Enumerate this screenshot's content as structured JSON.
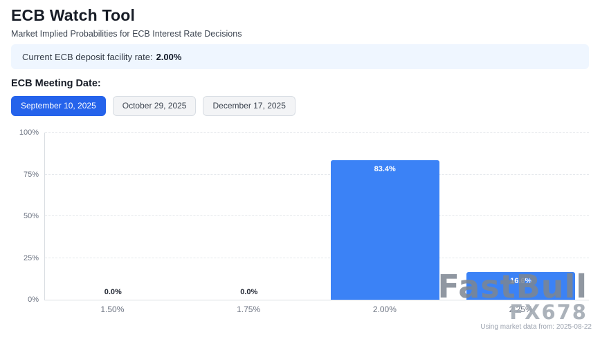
{
  "page": {
    "title": "ECB Watch Tool",
    "subtitle": "Market Implied Probabilities for ECB Interest Rate Decisions",
    "rate_banner": {
      "label": "Current ECB deposit facility rate:",
      "value": "2.00%"
    },
    "meeting_date_label": "ECB Meeting Date:",
    "meeting_tabs": [
      {
        "label": "September 10, 2025",
        "active": true
      },
      {
        "label": "October 29, 2025",
        "active": false
      },
      {
        "label": "December 17, 2025",
        "active": false
      }
    ],
    "watermark": {
      "brand": "FastBull",
      "sub": "FX678"
    },
    "footer_note": "Using market data from: 2025-08-22"
  },
  "colors": {
    "accent": "#2563eb",
    "bar": "#3b82f6",
    "banner_bg": "#eff6ff"
  },
  "chart_data": {
    "type": "bar",
    "title": "",
    "xlabel": "",
    "ylabel": "",
    "categories": [
      "1.50%",
      "1.75%",
      "2.00%",
      "2.25%"
    ],
    "values": [
      0.0,
      0.0,
      83.4,
      16.6
    ],
    "value_labels": [
      "0.0%",
      "0.0%",
      "83.4%",
      "16.6%"
    ],
    "ylim": [
      0,
      100
    ],
    "yticks": [
      "0%",
      "25%",
      "50%",
      "75%",
      "100%"
    ],
    "grid": "horizontal-dashed",
    "legend": "none"
  }
}
